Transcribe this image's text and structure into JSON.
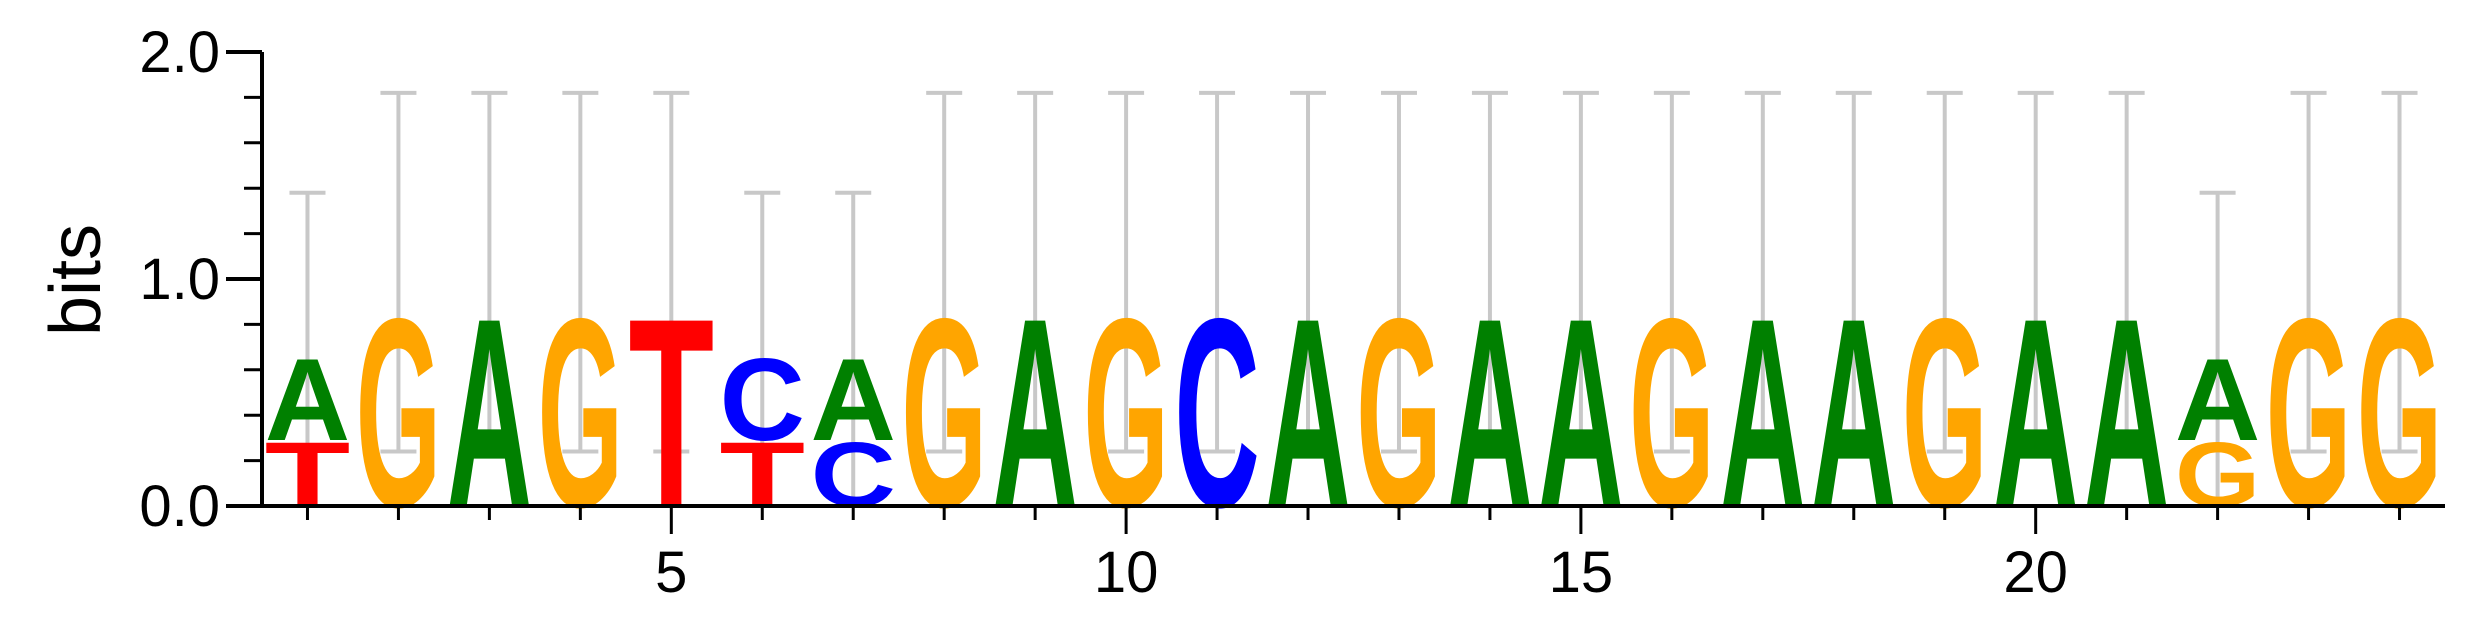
{
  "chart_data": {
    "type": "sequence-logo",
    "ylabel": "bits",
    "ylim": [
      0,
      2.0
    ],
    "y_ticks": [
      "0.0",
      "1.0",
      "2.0"
    ],
    "x_ticks": [
      5,
      10,
      15,
      20
    ],
    "xlim": [
      0.5,
      24.5
    ],
    "colors": {
      "A": "#008000",
      "C": "#0000ff",
      "G": "#ffa500",
      "T": "#ff0000",
      "errorbar": "#c8c8c8"
    },
    "positions": [
      {
        "pos": 1,
        "stack": [
          {
            "base": "T",
            "bits": 0.29
          },
          {
            "base": "A",
            "bits": 0.37
          }
        ],
        "err_top": 1.38,
        "err_bottom": 0.0
      },
      {
        "pos": 2,
        "stack": [
          {
            "base": "G",
            "bits": 0.85
          }
        ],
        "err_top": 1.82,
        "err_bottom": 0.24
      },
      {
        "pos": 3,
        "stack": [
          {
            "base": "A",
            "bits": 0.85
          }
        ],
        "err_top": 1.82,
        "err_bottom": 0.24
      },
      {
        "pos": 4,
        "stack": [
          {
            "base": "G",
            "bits": 0.85
          }
        ],
        "err_top": 1.82,
        "err_bottom": 0.24
      },
      {
        "pos": 5,
        "stack": [
          {
            "base": "T",
            "bits": 0.85
          }
        ],
        "err_top": 1.82,
        "err_bottom": 0.24
      },
      {
        "pos": 6,
        "stack": [
          {
            "base": "T",
            "bits": 0.29
          },
          {
            "base": "C",
            "bits": 0.37
          }
        ],
        "err_top": 1.38,
        "err_bottom": 0.0
      },
      {
        "pos": 7,
        "stack": [
          {
            "base": "C",
            "bits": 0.29
          },
          {
            "base": "A",
            "bits": 0.37
          }
        ],
        "err_top": 1.38,
        "err_bottom": 0.0
      },
      {
        "pos": 8,
        "stack": [
          {
            "base": "G",
            "bits": 0.85
          }
        ],
        "err_top": 1.82,
        "err_bottom": 0.24
      },
      {
        "pos": 9,
        "stack": [
          {
            "base": "A",
            "bits": 0.85
          }
        ],
        "err_top": 1.82,
        "err_bottom": 0.24
      },
      {
        "pos": 10,
        "stack": [
          {
            "base": "G",
            "bits": 0.85
          }
        ],
        "err_top": 1.82,
        "err_bottom": 0.24
      },
      {
        "pos": 11,
        "stack": [
          {
            "base": "C",
            "bits": 0.85
          }
        ],
        "err_top": 1.82,
        "err_bottom": 0.24
      },
      {
        "pos": 12,
        "stack": [
          {
            "base": "A",
            "bits": 0.85
          }
        ],
        "err_top": 1.82,
        "err_bottom": 0.24
      },
      {
        "pos": 13,
        "stack": [
          {
            "base": "G",
            "bits": 0.85
          }
        ],
        "err_top": 1.82,
        "err_bottom": 0.24
      },
      {
        "pos": 14,
        "stack": [
          {
            "base": "A",
            "bits": 0.85
          }
        ],
        "err_top": 1.82,
        "err_bottom": 0.24
      },
      {
        "pos": 15,
        "stack": [
          {
            "base": "A",
            "bits": 0.85
          }
        ],
        "err_top": 1.82,
        "err_bottom": 0.24
      },
      {
        "pos": 16,
        "stack": [
          {
            "base": "G",
            "bits": 0.85
          }
        ],
        "err_top": 1.82,
        "err_bottom": 0.24
      },
      {
        "pos": 17,
        "stack": [
          {
            "base": "A",
            "bits": 0.85
          }
        ],
        "err_top": 1.82,
        "err_bottom": 0.24
      },
      {
        "pos": 18,
        "stack": [
          {
            "base": "A",
            "bits": 0.85
          }
        ],
        "err_top": 1.82,
        "err_bottom": 0.24
      },
      {
        "pos": 19,
        "stack": [
          {
            "base": "G",
            "bits": 0.85
          }
        ],
        "err_top": 1.82,
        "err_bottom": 0.24
      },
      {
        "pos": 20,
        "stack": [
          {
            "base": "A",
            "bits": 0.85
          }
        ],
        "err_top": 1.82,
        "err_bottom": 0.24
      },
      {
        "pos": 21,
        "stack": [
          {
            "base": "A",
            "bits": 0.85
          }
        ],
        "err_top": 1.82,
        "err_bottom": 0.24
      },
      {
        "pos": 22,
        "stack": [
          {
            "base": "G",
            "bits": 0.29
          },
          {
            "base": "A",
            "bits": 0.37
          }
        ],
        "err_top": 1.38,
        "err_bottom": 0.0
      },
      {
        "pos": 23,
        "stack": [
          {
            "base": "G",
            "bits": 0.85
          }
        ],
        "err_top": 1.82,
        "err_bottom": 0.24
      },
      {
        "pos": 24,
        "stack": [
          {
            "base": "G",
            "bits": 0.85
          }
        ],
        "err_top": 1.82,
        "err_bottom": 0.24
      }
    ]
  }
}
